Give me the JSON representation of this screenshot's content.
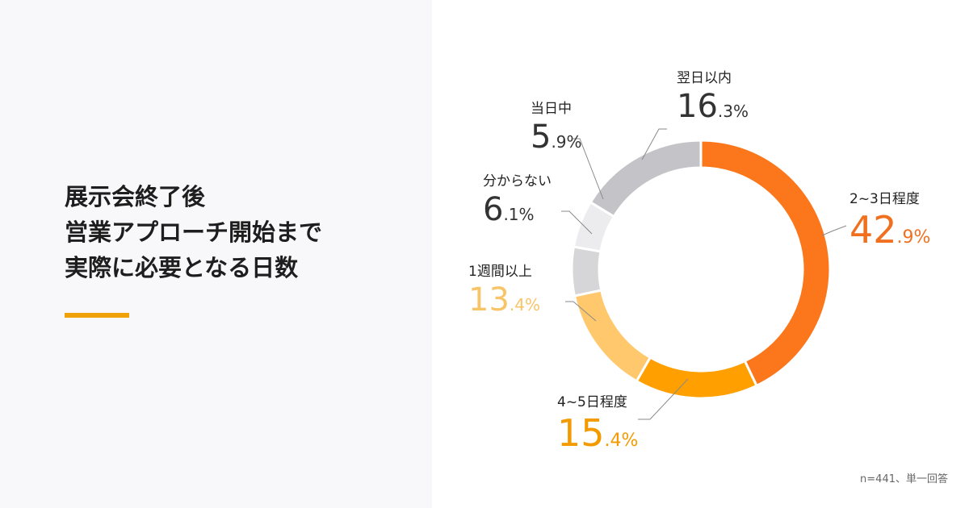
{
  "title": {
    "lines": [
      "展示会終了後",
      "営業アプローチ開始まで",
      "実際に必要となる日数"
    ]
  },
  "note": "n=441、単一回答",
  "colors": {
    "title_underline": "#f0a20a",
    "slice_2_3_days": "#fc761c",
    "slice_4_5_days": "#ffa000",
    "slice_1_week": "#ffc86c",
    "slice_unknown": "#d6d6d8",
    "slice_same_day": "#ececef",
    "slice_next_day": "#c4c4c8"
  },
  "chart_data": {
    "type": "pie",
    "title": "",
    "segments": [
      {
        "label": "2~3日程度",
        "value": 42.9,
        "int": "42",
        "dec": ".9%",
        "color": "#fc761c",
        "text_color": "#f07020"
      },
      {
        "label": "4~5日程度",
        "value": 15.4,
        "int": "15",
        "dec": ".4%",
        "color": "#ffa000",
        "text_color": "#f29a00"
      },
      {
        "label": "1週間以上",
        "value": 13.4,
        "int": "13",
        "dec": ".4%",
        "color": "#ffc86c",
        "text_color": "#f8c468"
      },
      {
        "label": "分からない",
        "value": 6.1,
        "int": "6",
        "dec": ".1%",
        "color": "#d6d6d8",
        "text_color": "#333333"
      },
      {
        "label": "当日中",
        "value": 5.9,
        "int": "5",
        "dec": ".9%",
        "color": "#ececef",
        "text_color": "#333333"
      },
      {
        "label": "翌日以内",
        "value": 16.3,
        "int": "16",
        "dec": ".3%",
        "color": "#c4c4c8",
        "text_color": "#333333"
      }
    ]
  }
}
